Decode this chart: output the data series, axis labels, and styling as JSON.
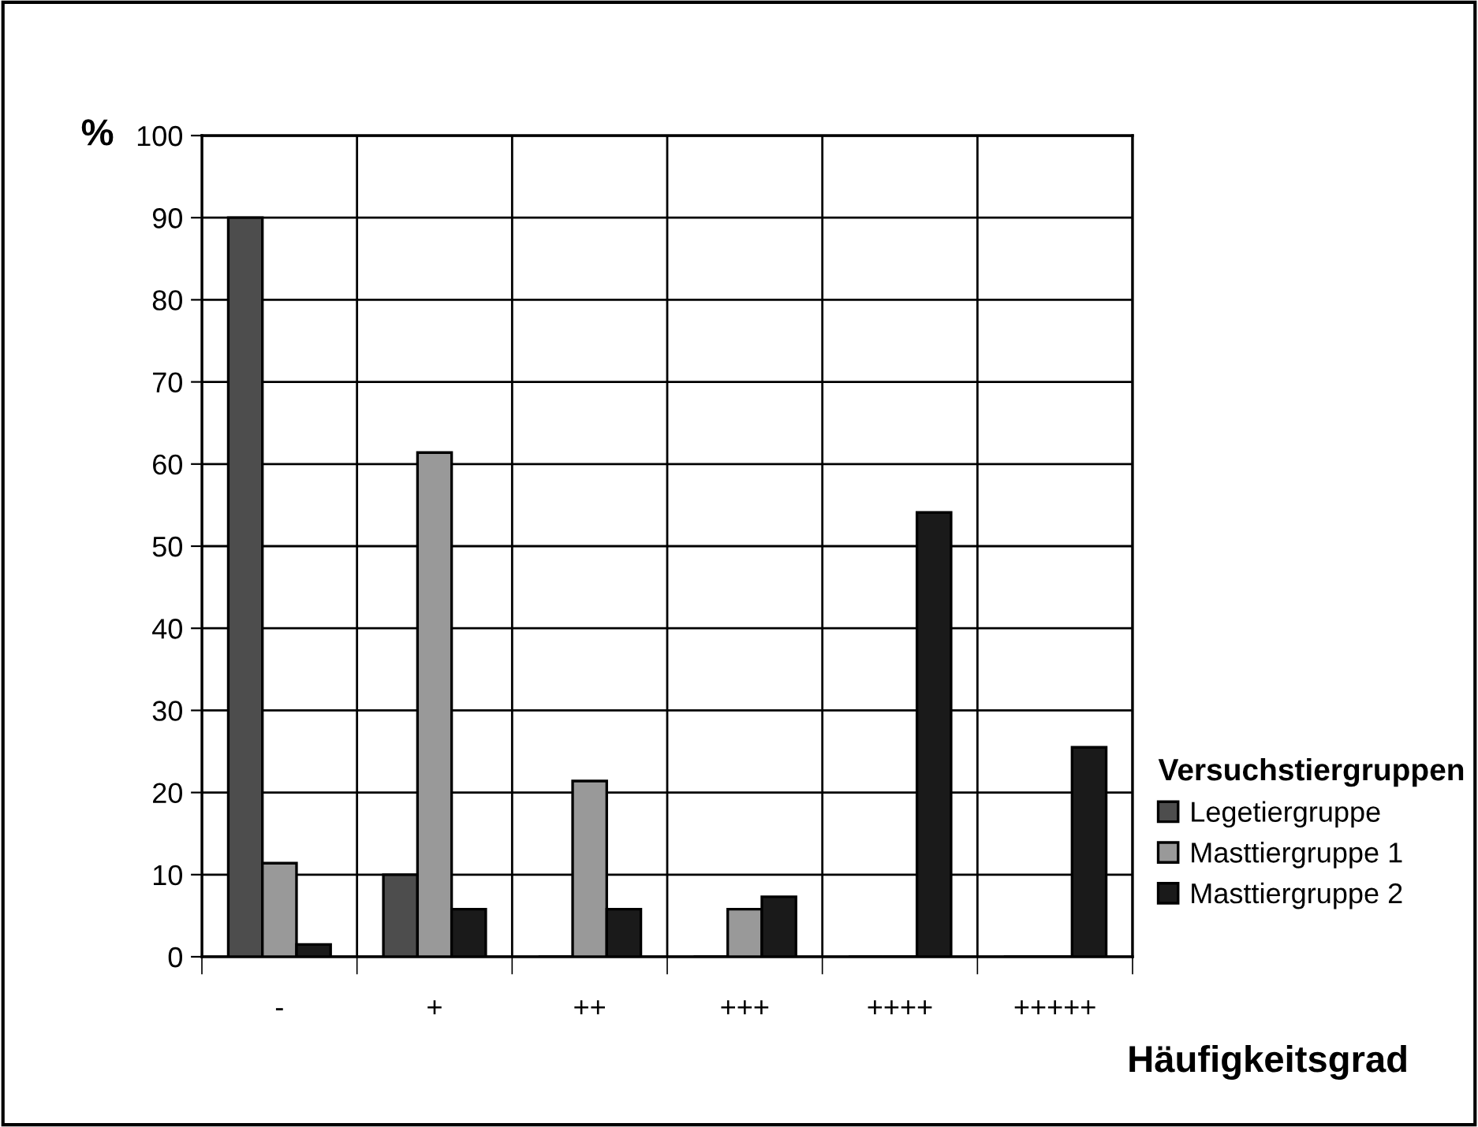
{
  "chart_data": {
    "type": "bar",
    "ylabel": "%",
    "xlabel": "Häufigkeitsgrad",
    "legend_title": "Versuchstiergruppen",
    "categories": [
      "-",
      "+",
      "++",
      "+++",
      "++++",
      "+++++"
    ],
    "series": [
      {
        "name": "Legetiergruppe",
        "color": "#4d4d4d",
        "values": [
          90,
          10,
          0,
          0,
          0,
          0
        ]
      },
      {
        "name": "Masttiergruppe 1",
        "color": "#999999",
        "values": [
          11.4,
          61.4,
          21.4,
          5.8,
          0,
          0
        ]
      },
      {
        "name": "Masttiergruppe 2",
        "color": "#1a1a1a",
        "values": [
          1.5,
          5.8,
          5.8,
          7.3,
          54.1,
          25.5
        ]
      }
    ],
    "ylim": [
      0,
      100
    ],
    "yticks": [
      0,
      10,
      20,
      30,
      40,
      50,
      60,
      70,
      80,
      90,
      100
    ],
    "grid": true,
    "legend": "right"
  }
}
